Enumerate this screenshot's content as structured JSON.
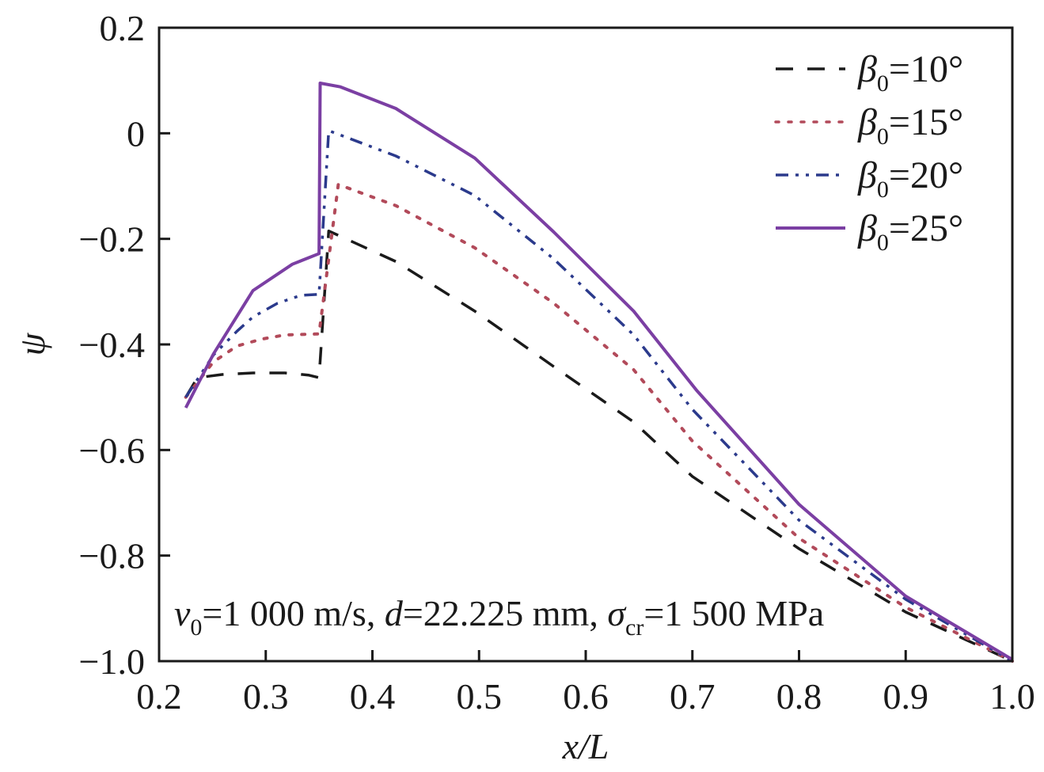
{
  "chart_data": {
    "type": "line",
    "title": "",
    "xlabel": "x/L",
    "ylabel": "ψ",
    "xlim": [
      0.2,
      1.0
    ],
    "ylim": [
      -1.0,
      0.2
    ],
    "x_ticks": [
      0.2,
      0.3,
      0.4,
      0.5,
      0.6,
      0.7,
      0.8,
      0.9,
      1.0
    ],
    "x_tick_labels": [
      "0.2",
      "0.3",
      "0.4",
      "0.5",
      "0.6",
      "0.7",
      "0.8",
      "0.9",
      "1.0"
    ],
    "y_ticks": [
      0.2,
      0.0,
      -0.2,
      -0.4,
      -0.6,
      -0.8,
      -1.0
    ],
    "y_tick_labels": [
      "0.2",
      "0",
      "−0.2",
      "−0.4",
      "−0.6",
      "−0.8",
      "−1.0"
    ],
    "grid": false,
    "legend_position": "top-right",
    "annotation": {
      "v_symbol": "v",
      "v_sub": "0",
      "v_text": "=1 000 m/s, ",
      "d_symbol": "d",
      "d_text": "=22.225 mm, ",
      "sigma_symbol": "σ",
      "sigma_sub": "cr",
      "sigma_text": "=1 500 MPa"
    },
    "series": [
      {
        "name": "β0=10°",
        "legend_symbol": "β",
        "legend_sub": "0",
        "legend_value": "=10°",
        "color": "#1a1a1a",
        "style": "dashed",
        "x": [
          0.225,
          0.236,
          0.259,
          0.288,
          0.318,
          0.34,
          0.35,
          0.35,
          0.359,
          0.422,
          0.496,
          0.57,
          0.645,
          0.7,
          0.8,
          0.9,
          1.0
        ],
        "y": [
          -0.5,
          -0.463,
          -0.457,
          -0.454,
          -0.454,
          -0.458,
          -0.463,
          -0.463,
          -0.185,
          -0.243,
          -0.337,
          -0.442,
          -0.547,
          -0.65,
          -0.787,
          -0.907,
          -1.0
        ]
      },
      {
        "name": "β0=15°",
        "legend_symbol": "β",
        "legend_sub": "0",
        "legend_value": "=15°",
        "color": "#b24a5a",
        "style": "dotted",
        "x": [
          0.225,
          0.251,
          0.273,
          0.296,
          0.318,
          0.35,
          0.35,
          0.368,
          0.422,
          0.496,
          0.57,
          0.645,
          0.7,
          0.8,
          0.9,
          1.0
        ],
        "y": [
          -0.5,
          -0.433,
          -0.403,
          -0.39,
          -0.382,
          -0.38,
          -0.38,
          -0.097,
          -0.137,
          -0.217,
          -0.322,
          -0.448,
          -0.583,
          -0.767,
          -0.898,
          -1.0
        ]
      },
      {
        "name": "β0=20°",
        "legend_symbol": "β",
        "legend_sub": "0",
        "legend_value": "=20°",
        "color": "#2b3a8c",
        "style": "dashdot",
        "x": [
          0.225,
          0.251,
          0.273,
          0.288,
          0.311,
          0.333,
          0.35,
          0.35,
          0.359,
          0.422,
          0.496,
          0.57,
          0.645,
          0.7,
          0.8,
          0.9,
          1.0
        ],
        "y": [
          -0.5,
          -0.42,
          -0.375,
          -0.348,
          -0.322,
          -0.307,
          -0.305,
          -0.305,
          0.005,
          -0.043,
          -0.118,
          -0.238,
          -0.382,
          -0.523,
          -0.733,
          -0.883,
          -1.0
        ]
      },
      {
        "name": "β0=25°",
        "legend_symbol": "β",
        "legend_sub": "0",
        "legend_value": "=25°",
        "color": "#7b3fa3",
        "style": "solid",
        "x": [
          0.225,
          0.251,
          0.288,
          0.325,
          0.35,
          0.351,
          0.37,
          0.422,
          0.496,
          0.57,
          0.645,
          0.704,
          0.8,
          0.9,
          1.0
        ],
        "y": [
          -0.52,
          -0.418,
          -0.298,
          -0.248,
          -0.228,
          0.095,
          0.088,
          0.047,
          -0.047,
          -0.187,
          -0.337,
          -0.487,
          -0.703,
          -0.877,
          -0.997
        ]
      }
    ]
  }
}
